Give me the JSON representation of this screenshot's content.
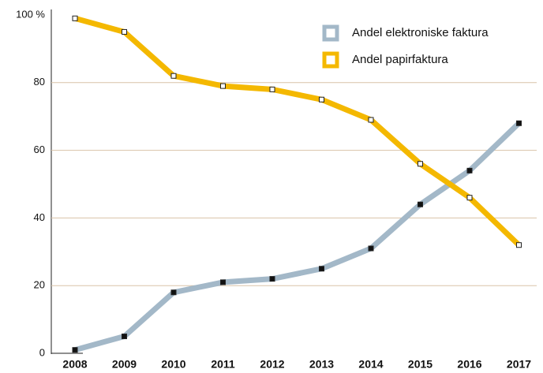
{
  "chart_data": {
    "type": "line",
    "categories": [
      "2008",
      "2009",
      "2010",
      "2011",
      "2012",
      "2013",
      "2014",
      "2015",
      "2016",
      "2017"
    ],
    "series": [
      {
        "name": "Andel elektroniske faktura",
        "color": "#a3b8c8",
        "marker": "#111111",
        "values": [
          1,
          5,
          18,
          21,
          22,
          25,
          31,
          44,
          54,
          68
        ]
      },
      {
        "name": "Andel papirfaktura",
        "color": "#f4b800",
        "marker": "#ffffff",
        "values": [
          99,
          95,
          82,
          79,
          78,
          75,
          69,
          56,
          46,
          32
        ]
      }
    ],
    "ylim": [
      0,
      100
    ],
    "yticks": [
      0,
      20,
      40,
      60,
      80,
      {
        "value": 100,
        "label": "100 %"
      }
    ],
    "grid": true,
    "legend": "top-right"
  }
}
